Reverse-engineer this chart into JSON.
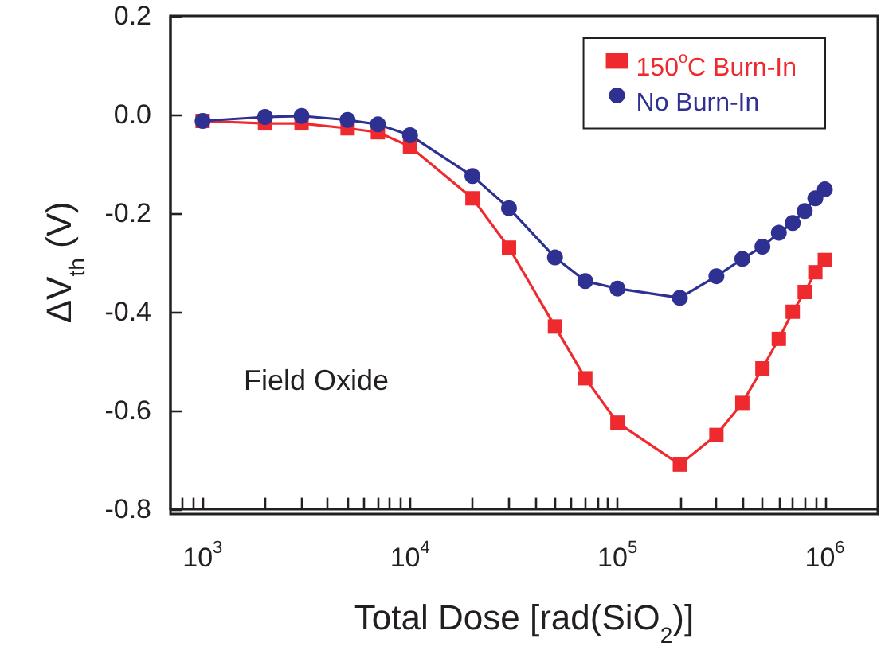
{
  "chart_data": {
    "type": "line",
    "xlabel": "Total Dose [rad(SiO$_{2}$)]",
    "ylabel": "ΔV$_{th}$ (V)",
    "annotations": [
      "Field Oxide"
    ],
    "x": [
      1000,
      2000,
      3000,
      5000,
      7000,
      10000,
      20000,
      30000,
      50000,
      70000,
      100000,
      200000,
      300000,
      400000,
      500000,
      600000,
      700000,
      800000,
      900000,
      1000000
    ],
    "series": [
      {
        "name": "150$^{o}$C Burn-In",
        "color": "#ee2a2e",
        "marker": "square",
        "values": [
          -0.013,
          -0.018,
          -0.018,
          -0.028,
          -0.036,
          -0.065,
          -0.17,
          -0.27,
          -0.43,
          -0.535,
          -0.625,
          -0.71,
          -0.65,
          -0.585,
          -0.515,
          -0.455,
          -0.4,
          -0.36,
          -0.32,
          -0.295
        ]
      },
      {
        "name": "No Burn-In",
        "color": "#2e3192",
        "marker": "circle",
        "values": [
          -0.013,
          -0.005,
          -0.003,
          -0.011,
          -0.02,
          -0.042,
          -0.125,
          -0.19,
          -0.29,
          -0.338,
          -0.353,
          -0.372,
          -0.328,
          -0.293,
          -0.268,
          -0.24,
          -0.22,
          -0.196,
          -0.17,
          -0.152
        ]
      }
    ],
    "log": "x",
    "xlim": [
      700,
      1800000
    ],
    "xticks": [
      {
        "value": 800,
        "label": null
      },
      {
        "value": 900,
        "label": null
      },
      {
        "value": 1000,
        "label": "10$^{3}$"
      },
      {
        "value": 2000,
        "label": null
      },
      {
        "value": 3000,
        "label": null
      },
      {
        "value": 4000,
        "label": null
      },
      {
        "value": 5000,
        "label": null
      },
      {
        "value": 6000,
        "label": null
      },
      {
        "value": 7000,
        "label": null
      },
      {
        "value": 8000,
        "label": null
      },
      {
        "value": 9000,
        "label": null
      },
      {
        "value": 10000,
        "label": "10$^{4}$"
      },
      {
        "value": 20000,
        "label": null
      },
      {
        "value": 30000,
        "label": null
      },
      {
        "value": 40000,
        "label": null
      },
      {
        "value": 50000,
        "label": null
      },
      {
        "value": 60000,
        "label": null
      },
      {
        "value": 70000,
        "label": null
      },
      {
        "value": 80000,
        "label": null
      },
      {
        "value": 90000,
        "label": null
      },
      {
        "value": 100000,
        "label": "10$^{5}$"
      },
      {
        "value": 200000,
        "label": null
      },
      {
        "value": 300000,
        "label": null
      },
      {
        "value": 400000,
        "label": null
      },
      {
        "value": 500000,
        "label": null
      },
      {
        "value": 600000,
        "label": null
      },
      {
        "value": 700000,
        "label": null
      },
      {
        "value": 800000,
        "label": null
      },
      {
        "value": 900000,
        "label": null
      },
      {
        "value": 1000000,
        "label": "10$^{6}$"
      }
    ],
    "ylim": [
      -0.8,
      0.2
    ],
    "yticks": [
      {
        "value": -0.8,
        "label": "-0.8"
      },
      {
        "value": -0.6,
        "label": "-0.6"
      },
      {
        "value": -0.4,
        "label": "-0.4"
      },
      {
        "value": -0.2,
        "label": "-0.2"
      },
      {
        "value": 0,
        "label": "0.0"
      },
      {
        "value": 0.2,
        "label": "0.2"
      }
    ],
    "grid": false,
    "legend": "top right",
    "line_style": "solid"
  }
}
